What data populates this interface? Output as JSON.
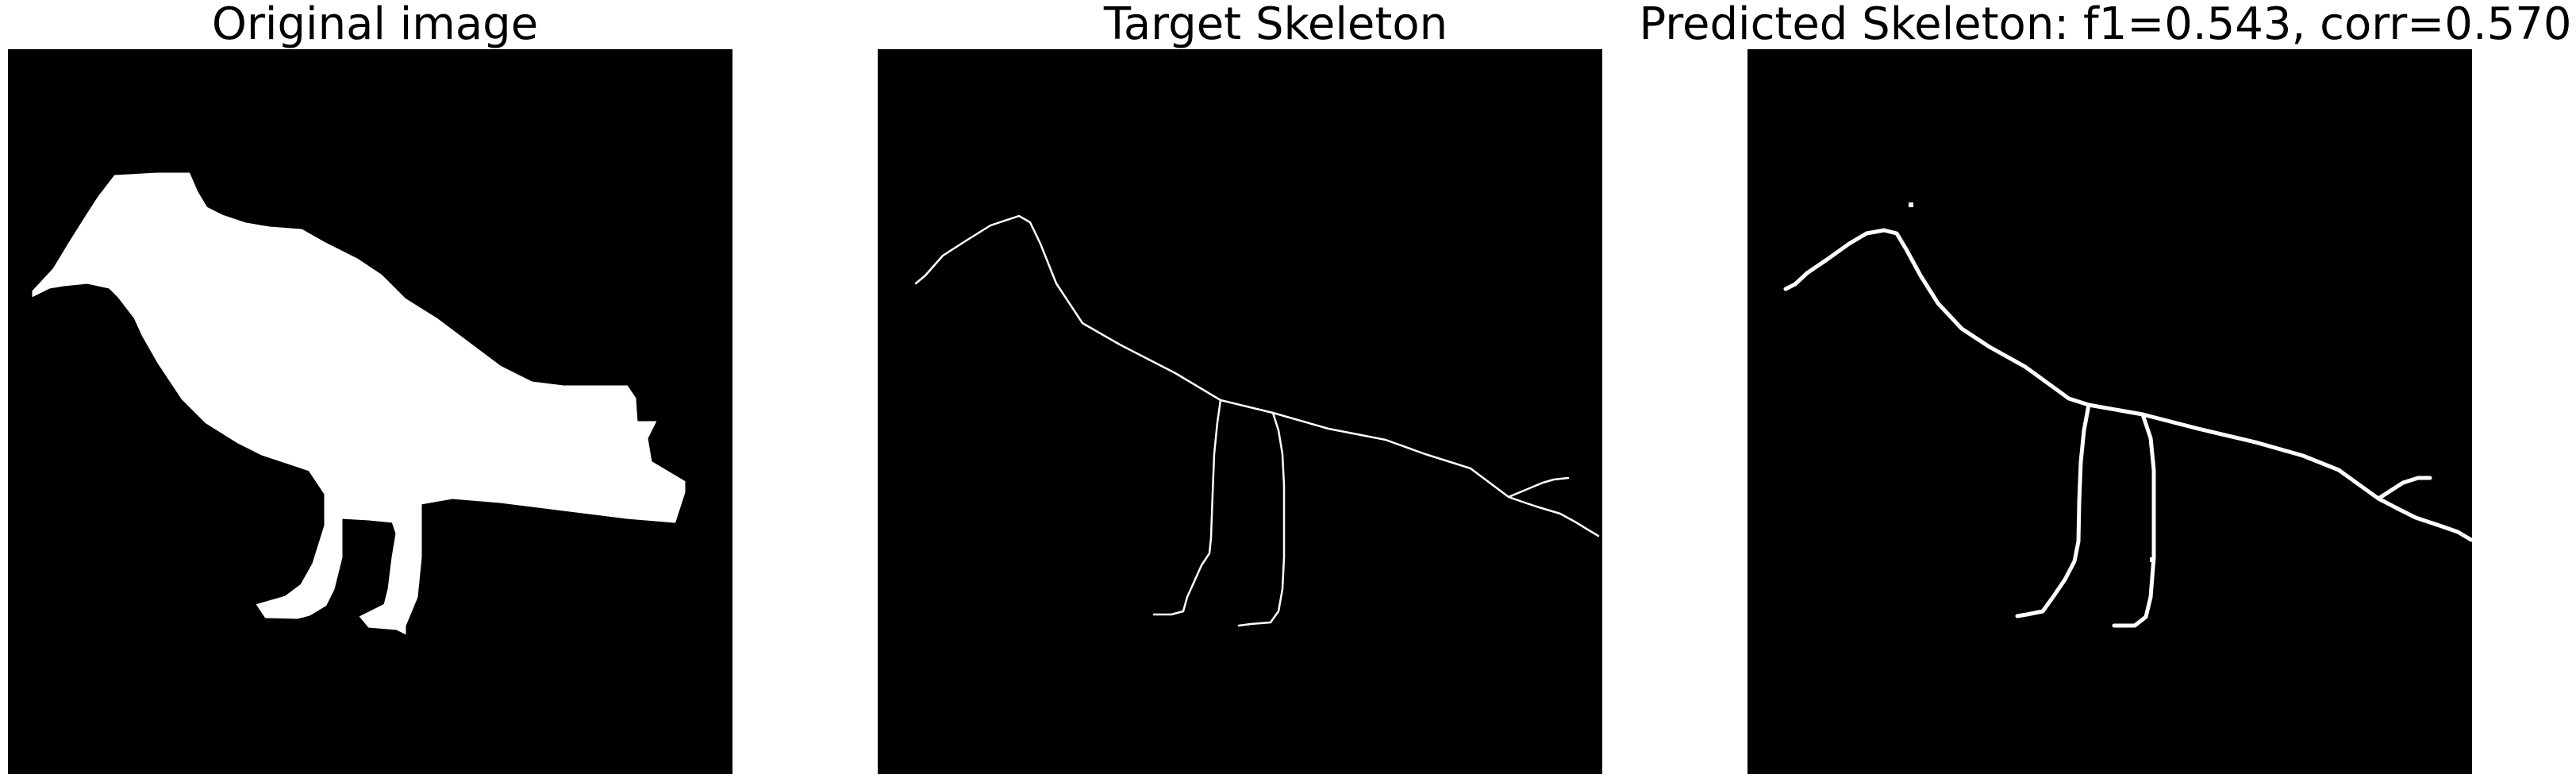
{
  "panels": [
    {
      "title": "Original image"
    },
    {
      "title": "Target Skeleton"
    },
    {
      "title": "Predicted Skeleton: f1=0.543, corr=0.570"
    }
  ],
  "colors": {
    "background": "#000000",
    "foreground": "#ffffff",
    "page": "#ffffff"
  }
}
